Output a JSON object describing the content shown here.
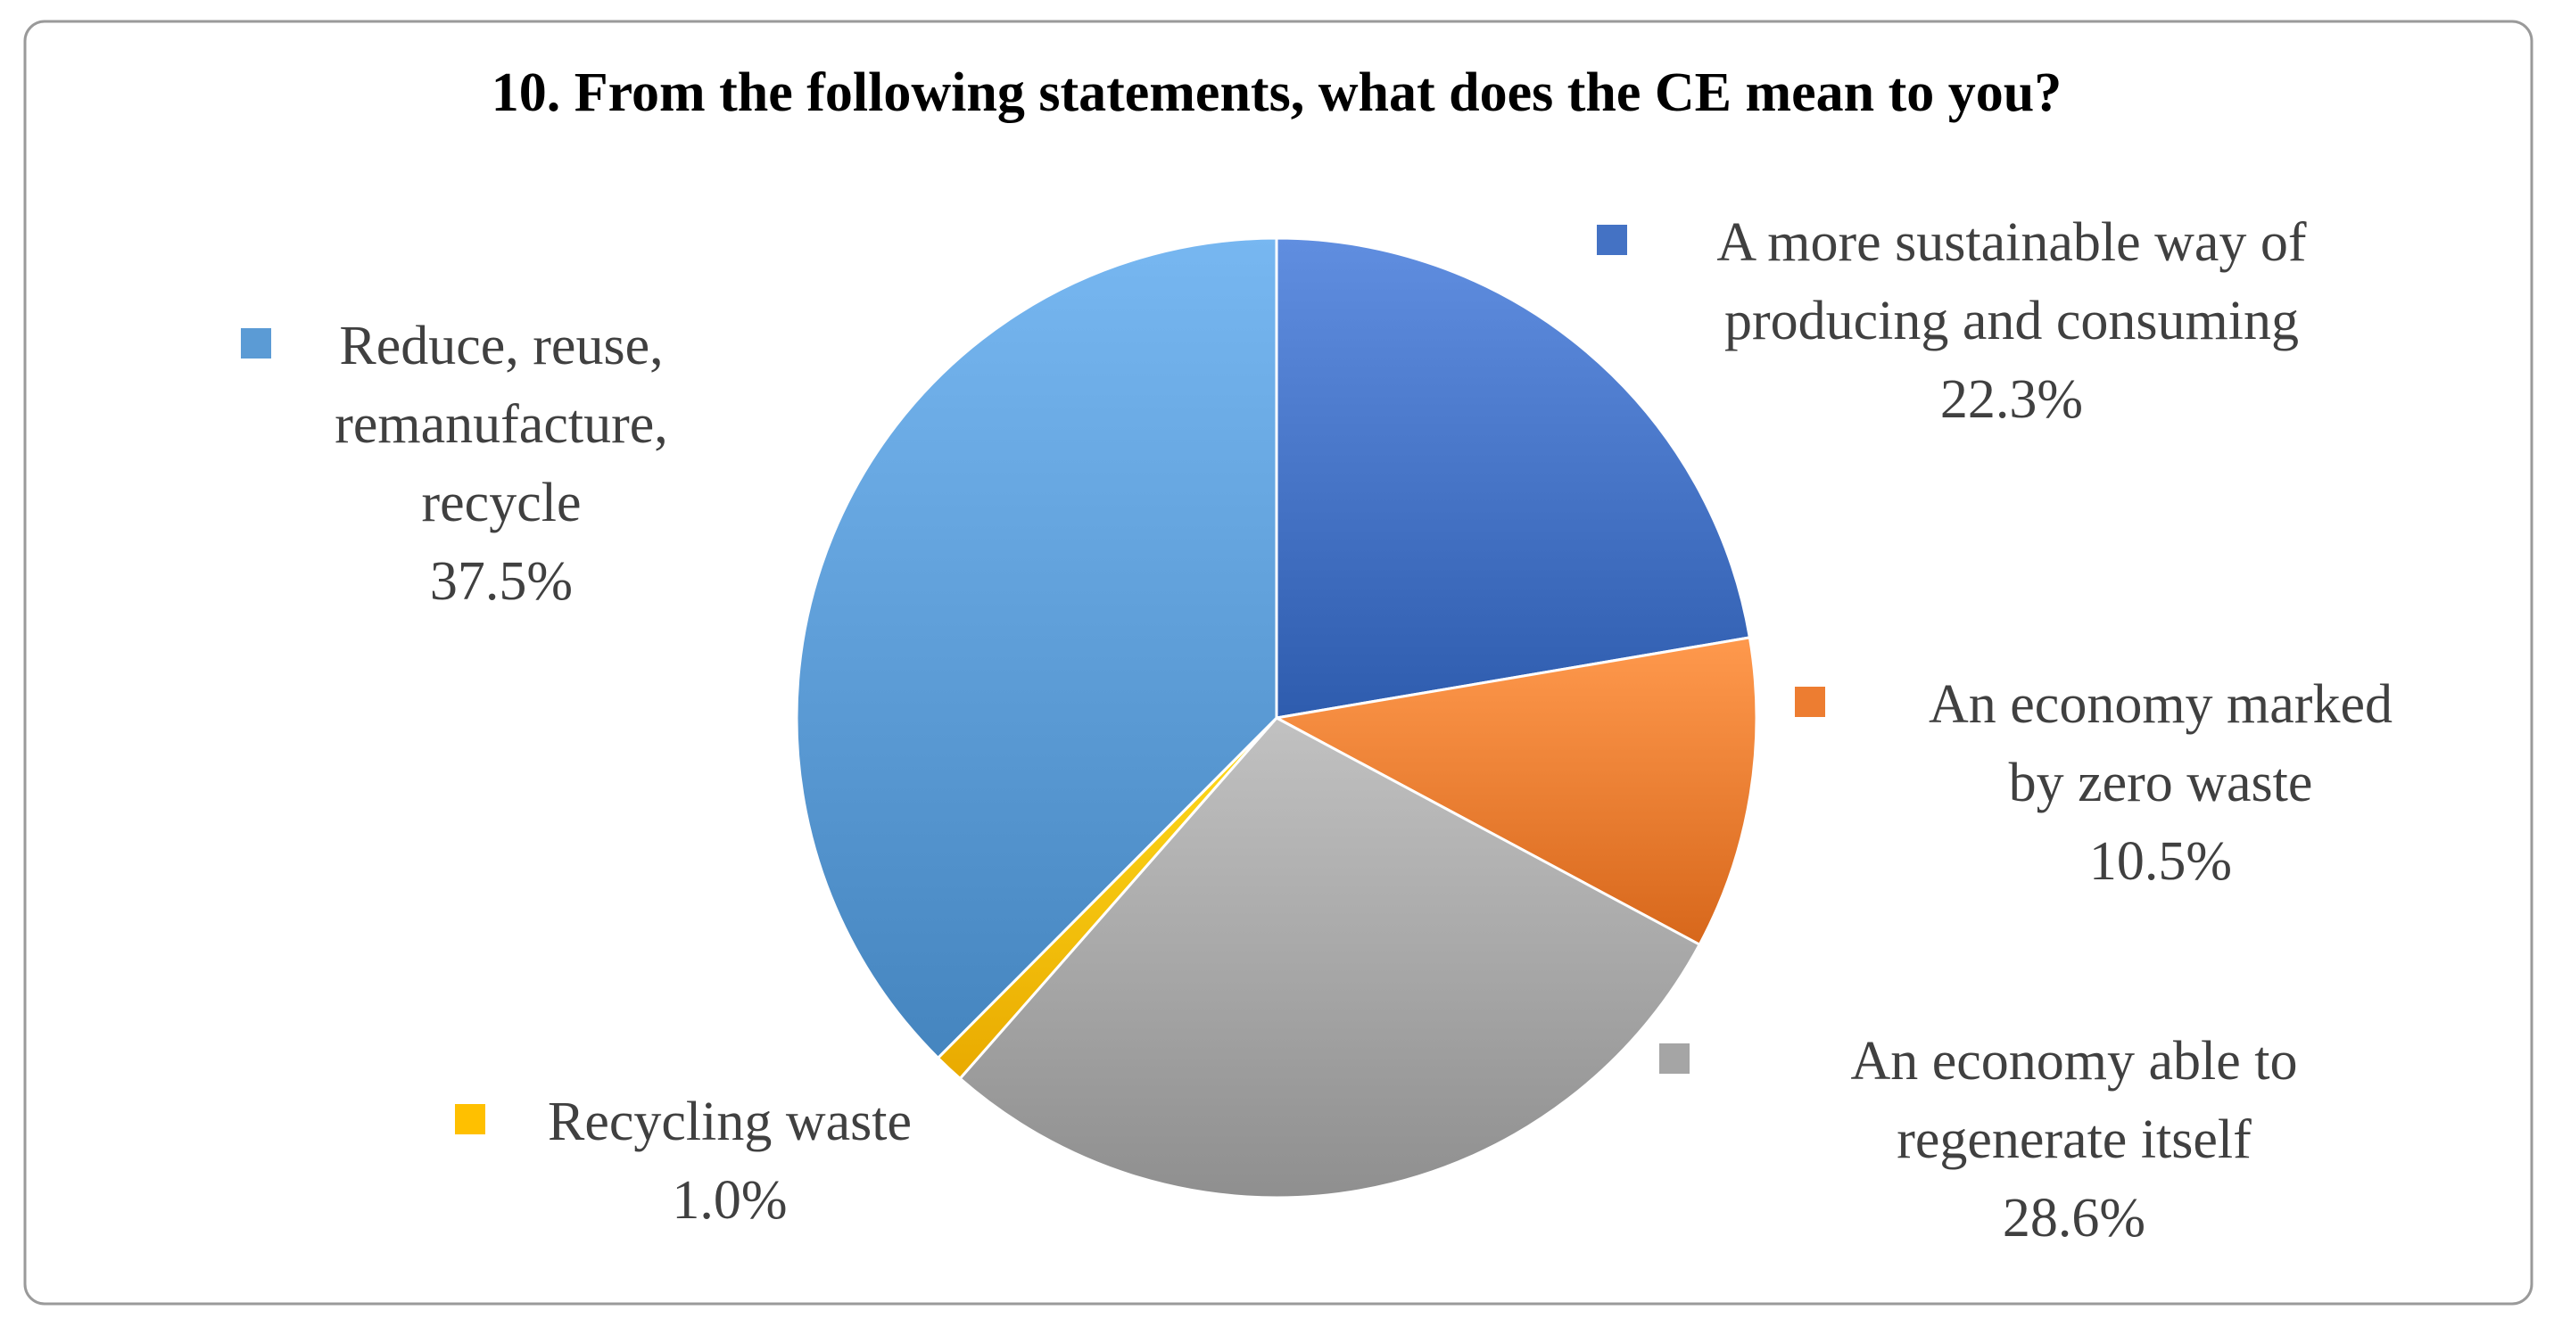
{
  "chart_data": {
    "type": "pie",
    "title": "10. From the following statements, what does the CE mean to you?",
    "start_angle_deg": 0,
    "direction": "clockwise",
    "slices": [
      {
        "label_lines": [
          "A more sustainable way of",
          "producing and consuming"
        ],
        "value": 22.3,
        "value_label": "22.3%",
        "color": "#4472C4"
      },
      {
        "label_lines": [
          "An economy marked",
          "by zero waste"
        ],
        "value": 10.5,
        "value_label": "10.5%",
        "color": "#ED7D31"
      },
      {
        "label_lines": [
          "An economy able to",
          "regenerate itself"
        ],
        "value": 28.6,
        "value_label": "28.6%",
        "color": "#A5A5A5"
      },
      {
        "label_lines": [
          "Recycling waste"
        ],
        "value": 1.0,
        "value_label": "1.0%",
        "color": "#FFC000"
      },
      {
        "label_lines": [
          "Reduce, reuse,",
          "remanufacture,",
          "recycle"
        ],
        "value": 37.5,
        "value_label": "37.5%",
        "color": "#5B9BD5"
      }
    ]
  }
}
